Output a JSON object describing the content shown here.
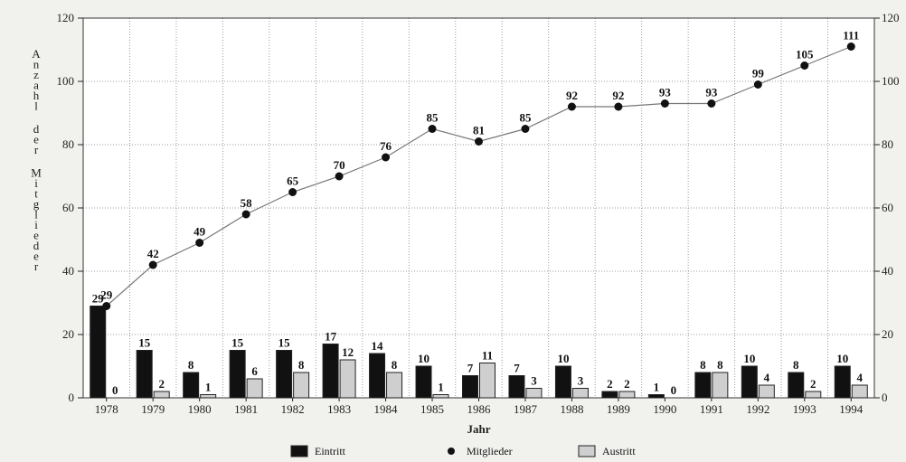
{
  "chart_data": {
    "type": "bar",
    "title": "",
    "xlabel": "Jahr",
    "ylabel": "Anzahl der Mitglieder",
    "categories": [
      "1978",
      "1979",
      "1980",
      "1981",
      "1982",
      "1983",
      "1984",
      "1985",
      "1986",
      "1987",
      "1988",
      "1989",
      "1990",
      "1991",
      "1992",
      "1993",
      "1994"
    ],
    "ylim": [
      0,
      120
    ],
    "yticks": [
      0,
      20,
      40,
      60,
      80,
      100,
      120
    ],
    "grid": true,
    "legend_position": "bottom",
    "series": [
      {
        "name": "Eintritt",
        "kind": "bar",
        "color": "#111111",
        "values": [
          29,
          15,
          8,
          15,
          15,
          17,
          14,
          10,
          7,
          7,
          10,
          2,
          1,
          8,
          10,
          8,
          10
        ]
      },
      {
        "name": "Mitglieder",
        "kind": "line",
        "color": "#111111",
        "values": [
          29,
          42,
          49,
          58,
          65,
          70,
          76,
          85,
          81,
          85,
          92,
          92,
          93,
          93,
          99,
          105,
          111
        ]
      },
      {
        "name": "Austritt",
        "kind": "bar",
        "color": "#cfcfcf",
        "values": [
          0,
          2,
          1,
          6,
          8,
          12,
          8,
          1,
          11,
          3,
          3,
          2,
          0,
          8,
          4,
          2,
          4
        ]
      }
    ]
  }
}
